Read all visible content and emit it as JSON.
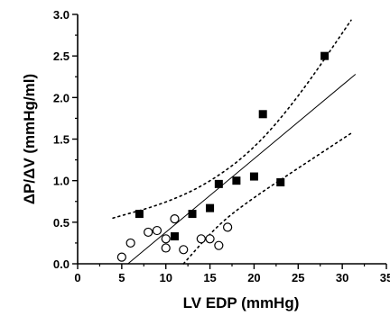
{
  "chart_data": {
    "type": "scatter",
    "title": "",
    "xlabel": "LV EDP (mmHg)",
    "ylabel": "ΔP/ΔV (mmHg/ml)",
    "xlim": [
      0,
      35
    ],
    "ylim": [
      0,
      3.0
    ],
    "x_ticks": [
      "0",
      "5",
      "10",
      "15",
      "20",
      "25",
      "30",
      "35"
    ],
    "y_ticks": [
      "0.0",
      "0.5",
      "1.0",
      "1.5",
      "2.0",
      "2.5",
      "3.0"
    ],
    "grid": false,
    "series": [
      {
        "marker": "filled-square",
        "color": "#000000",
        "points": [
          {
            "x": 7,
            "y": 0.6
          },
          {
            "x": 11,
            "y": 0.33
          },
          {
            "x": 13,
            "y": 0.6
          },
          {
            "x": 15,
            "y": 0.67
          },
          {
            "x": 16,
            "y": 0.96
          },
          {
            "x": 18,
            "y": 1.0
          },
          {
            "x": 20,
            "y": 1.05
          },
          {
            "x": 21,
            "y": 1.8
          },
          {
            "x": 23,
            "y": 0.98
          },
          {
            "x": 28,
            "y": 2.5
          }
        ]
      },
      {
        "marker": "open-circle",
        "color": "#000000",
        "points": [
          {
            "x": 5,
            "y": 0.08
          },
          {
            "x": 6,
            "y": 0.25
          },
          {
            "x": 8,
            "y": 0.38
          },
          {
            "x": 9,
            "y": 0.4
          },
          {
            "x": 10,
            "y": 0.3
          },
          {
            "x": 10,
            "y": 0.19
          },
          {
            "x": 11,
            "y": 0.54
          },
          {
            "x": 12,
            "y": 0.17
          },
          {
            "x": 14,
            "y": 0.3
          },
          {
            "x": 15,
            "y": 0.3
          },
          {
            "x": 16,
            "y": 0.22
          },
          {
            "x": 17,
            "y": 0.44
          }
        ]
      }
    ],
    "regression": {
      "style": "solid",
      "points": [
        {
          "x": 5.7,
          "y": 0.0
        },
        {
          "x": 31.5,
          "y": 2.28
        }
      ]
    },
    "confidence_bands": [
      {
        "style": "dotted",
        "points": [
          {
            "x": 4,
            "y": 0.55
          },
          {
            "x": 10,
            "y": 0.73
          },
          {
            "x": 15,
            "y": 0.98
          },
          {
            "x": 20,
            "y": 1.38
          },
          {
            "x": 25,
            "y": 2.0
          },
          {
            "x": 31,
            "y": 2.93
          }
        ]
      },
      {
        "style": "dotted",
        "points": [
          {
            "x": 12,
            "y": 0.0
          },
          {
            "x": 16,
            "y": 0.48
          },
          {
            "x": 20,
            "y": 0.8
          },
          {
            "x": 25,
            "y": 1.15
          },
          {
            "x": 31,
            "y": 1.57
          }
        ]
      }
    ]
  }
}
